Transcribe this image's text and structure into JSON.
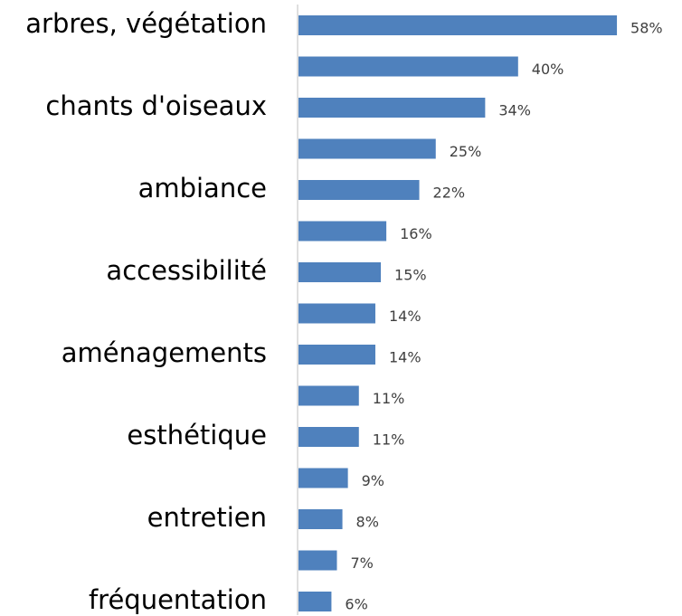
{
  "chart_data": {
    "type": "hbar",
    "categories": [
      "arbres, végétation",
      null,
      "chants d'oiseaux",
      null,
      "ambiance",
      null,
      "accessibilité",
      null,
      "aménagements",
      null,
      "esthétique",
      null,
      "entretien",
      null,
      "fréquentation"
    ],
    "values": [
      58,
      40,
      34,
      25,
      22,
      16,
      15,
      14,
      14,
      11,
      11,
      9,
      8,
      7,
      6
    ],
    "value_labels": [
      "58%",
      "40%",
      "34%",
      "25%",
      "22%",
      "16%",
      "15%",
      "14%",
      "14%",
      "11%",
      "11%",
      "9%",
      "8%",
      "7%",
      "6%"
    ],
    "color": "#4f81bd"
  }
}
